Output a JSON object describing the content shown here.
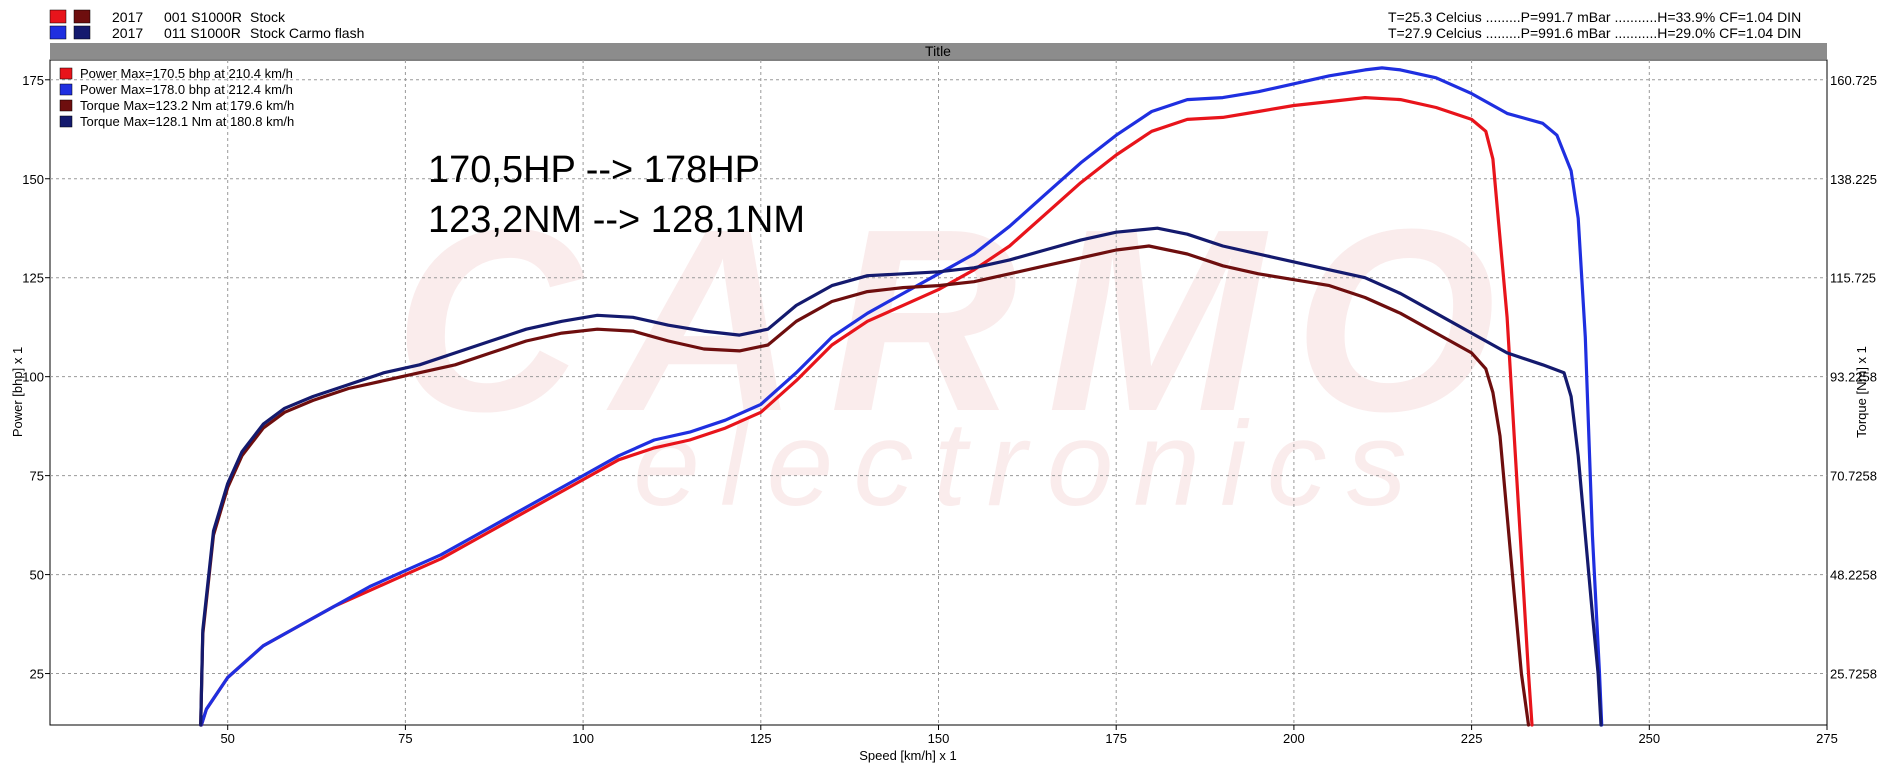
{
  "header": {
    "runs": [
      {
        "year": "2017",
        "id": "001 S1000R",
        "name": "Stock",
        "swatch_a": "#e8141b",
        "swatch_b": "#6e0e0e",
        "conditions": "T=25.3 Celcius .........P=991.7 mBar ...........H=33.9% CF=1.04 DIN"
      },
      {
        "year": "2017",
        "id": "011 S1000R",
        "name": "Stock Carmo flash",
        "swatch_a": "#1f2fe0",
        "swatch_b": "#141a6e",
        "conditions": "T=27.9 Celcius .........P=991.6 mBar ...........H=29.0% CF=1.04 DIN"
      }
    ],
    "title_bar": "Title"
  },
  "watermark": {
    "brand": "CARMO",
    "sub": "electronics"
  },
  "annotation": {
    "line1": "170,5HP --> 178HP",
    "line2": "123,2NM --> 128,1NM"
  },
  "chart_data": {
    "type": "line",
    "title": "Title",
    "xlabel": "Speed [km/h] x 1",
    "ylabel": "Power [bhp] x 1",
    "y2label": "Torque [Nm] x 1",
    "xlim": [
      25,
      275
    ],
    "ylim": [
      12,
      180
    ],
    "x_ticks": [
      "50",
      "75",
      "100",
      "125",
      "150",
      "175",
      "200",
      "225",
      "250",
      "275"
    ],
    "y_ticks": [
      "25",
      "50",
      "75",
      "100",
      "125",
      "150",
      "175"
    ],
    "y2_ticks": [
      "25.7258",
      "48.2258",
      "70.7258",
      "93.2258",
      "115.725",
      "138.225",
      "160.725"
    ],
    "grid": true,
    "legend": [
      {
        "text": "Power  Max=170.5 bhp at 210.4 km/h",
        "color": "#e8141b"
      },
      {
        "text": "Power  Max=178.0 bhp at 212.4 km/h",
        "color": "#1f2fe0"
      },
      {
        "text": "Torque  Max=123.2 Nm at 179.6 km/h",
        "color": "#6e0e0e"
      },
      {
        "text": "Torque  Max=128.1 Nm at 180.8 km/h",
        "color": "#141a6e"
      }
    ],
    "series": [
      {
        "name": "Power  Max=170.5 bhp at 210.4 km/h",
        "color": "#e8141b",
        "points": [
          [
            46.3,
            12
          ],
          [
            47,
            16
          ],
          [
            50,
            24
          ],
          [
            55,
            32
          ],
          [
            60,
            37
          ],
          [
            65,
            42
          ],
          [
            70,
            46
          ],
          [
            75,
            50
          ],
          [
            80,
            54
          ],
          [
            85,
            59
          ],
          [
            90,
            64
          ],
          [
            95,
            69
          ],
          [
            100,
            74
          ],
          [
            105,
            79
          ],
          [
            110,
            82
          ],
          [
            115,
            84
          ],
          [
            120,
            87
          ],
          [
            125,
            91
          ],
          [
            130,
            99
          ],
          [
            135,
            108
          ],
          [
            140,
            114
          ],
          [
            145,
            118
          ],
          [
            150,
            122
          ],
          [
            155,
            127
          ],
          [
            160,
            133
          ],
          [
            165,
            141
          ],
          [
            170,
            149
          ],
          [
            175,
            156
          ],
          [
            180,
            162
          ],
          [
            185,
            165
          ],
          [
            190,
            165.5
          ],
          [
            195,
            167
          ],
          [
            200,
            168.5
          ],
          [
            205,
            169.5
          ],
          [
            210,
            170.5
          ],
          [
            215,
            170
          ],
          [
            220,
            168
          ],
          [
            225,
            165
          ],
          [
            227,
            162
          ],
          [
            228,
            155
          ],
          [
            230,
            115
          ],
          [
            231,
            85
          ],
          [
            232,
            55
          ],
          [
            233,
            25
          ],
          [
            233.5,
            12
          ]
        ]
      },
      {
        "name": "Power  Max=178.0 bhp at 212.4 km/h",
        "color": "#1f2fe0",
        "points": [
          [
            46.3,
            12
          ],
          [
            47,
            16
          ],
          [
            50,
            24
          ],
          [
            55,
            32
          ],
          [
            60,
            37
          ],
          [
            65,
            42
          ],
          [
            70,
            47
          ],
          [
            75,
            51
          ],
          [
            80,
            55
          ],
          [
            85,
            60
          ],
          [
            90,
            65
          ],
          [
            95,
            70
          ],
          [
            100,
            75
          ],
          [
            105,
            80
          ],
          [
            110,
            84
          ],
          [
            115,
            86
          ],
          [
            120,
            89
          ],
          [
            125,
            93
          ],
          [
            130,
            101
          ],
          [
            135,
            110
          ],
          [
            140,
            116
          ],
          [
            145,
            121
          ],
          [
            150,
            126
          ],
          [
            155,
            131
          ],
          [
            160,
            138
          ],
          [
            165,
            146
          ],
          [
            170,
            154
          ],
          [
            175,
            161
          ],
          [
            180,
            167
          ],
          [
            185,
            170
          ],
          [
            190,
            170.5
          ],
          [
            195,
            172
          ],
          [
            200,
            174
          ],
          [
            205,
            176
          ],
          [
            210,
            177.5
          ],
          [
            212.4,
            178
          ],
          [
            215,
            177.5
          ],
          [
            220,
            175.5
          ],
          [
            225,
            171.5
          ],
          [
            230,
            166.5
          ],
          [
            235,
            164
          ],
          [
            237,
            161
          ],
          [
            239,
            152
          ],
          [
            240,
            140
          ],
          [
            241,
            110
          ],
          [
            242,
            60
          ],
          [
            243,
            25
          ],
          [
            243.3,
            12
          ]
        ]
      },
      {
        "name": "Torque  Max=123.2 Nm at 179.6 km/h",
        "color": "#6e0e0e",
        "points": [
          [
            46.2,
            12
          ],
          [
            46.5,
            35
          ],
          [
            48,
            60
          ],
          [
            50,
            72
          ],
          [
            52,
            80
          ],
          [
            55,
            87
          ],
          [
            58,
            91
          ],
          [
            62,
            94
          ],
          [
            67,
            97
          ],
          [
            72,
            99
          ],
          [
            77,
            101
          ],
          [
            82,
            103
          ],
          [
            87,
            106
          ],
          [
            92,
            109
          ],
          [
            97,
            111
          ],
          [
            102,
            112
          ],
          [
            107,
            111.5
          ],
          [
            112,
            109
          ],
          [
            117,
            107
          ],
          [
            122,
            106.5
          ],
          [
            126,
            108
          ],
          [
            130,
            114
          ],
          [
            135,
            119
          ],
          [
            140,
            121.5
          ],
          [
            145,
            122.5
          ],
          [
            150,
            123
          ],
          [
            155,
            124
          ],
          [
            160,
            126
          ],
          [
            165,
            128
          ],
          [
            170,
            130
          ],
          [
            175,
            132
          ],
          [
            179.6,
            133
          ],
          [
            185,
            131
          ],
          [
            190,
            128
          ],
          [
            195,
            126
          ],
          [
            200,
            124.5
          ],
          [
            205,
            123
          ],
          [
            210,
            120
          ],
          [
            215,
            116
          ],
          [
            220,
            111
          ],
          [
            225,
            106
          ],
          [
            227,
            102
          ],
          [
            228,
            96
          ],
          [
            229,
            85
          ],
          [
            230,
            65
          ],
          [
            231,
            45
          ],
          [
            232,
            25
          ],
          [
            233,
            12
          ]
        ]
      },
      {
        "name": "Torque  Max=128.1 Nm at 180.8 km/h",
        "color": "#141a6e",
        "points": [
          [
            46.2,
            12
          ],
          [
            46.5,
            36
          ],
          [
            48,
            61
          ],
          [
            50,
            73
          ],
          [
            52,
            81
          ],
          [
            55,
            88
          ],
          [
            58,
            92
          ],
          [
            62,
            95
          ],
          [
            67,
            98
          ],
          [
            72,
            101
          ],
          [
            77,
            103
          ],
          [
            82,
            106
          ],
          [
            87,
            109
          ],
          [
            92,
            112
          ],
          [
            97,
            114
          ],
          [
            102,
            115.5
          ],
          [
            107,
            115
          ],
          [
            112,
            113
          ],
          [
            117,
            111.5
          ],
          [
            122,
            110.5
          ],
          [
            126,
            112
          ],
          [
            130,
            118
          ],
          [
            135,
            123
          ],
          [
            140,
            125.5
          ],
          [
            145,
            126
          ],
          [
            150,
            126.5
          ],
          [
            155,
            127.5
          ],
          [
            160,
            129.5
          ],
          [
            165,
            132
          ],
          [
            170,
            134.5
          ],
          [
            175,
            136.5
          ],
          [
            180.8,
            137.5
          ],
          [
            185,
            136
          ],
          [
            190,
            133
          ],
          [
            195,
            131
          ],
          [
            200,
            129
          ],
          [
            205,
            127
          ],
          [
            210,
            125
          ],
          [
            215,
            121
          ],
          [
            220,
            116
          ],
          [
            225,
            111
          ],
          [
            230,
            106
          ],
          [
            235,
            103
          ],
          [
            238,
            101
          ],
          [
            239,
            95
          ],
          [
            240,
            80
          ],
          [
            241,
            60
          ],
          [
            242,
            40
          ],
          [
            242.8,
            25
          ],
          [
            243.2,
            12
          ]
        ]
      }
    ]
  }
}
